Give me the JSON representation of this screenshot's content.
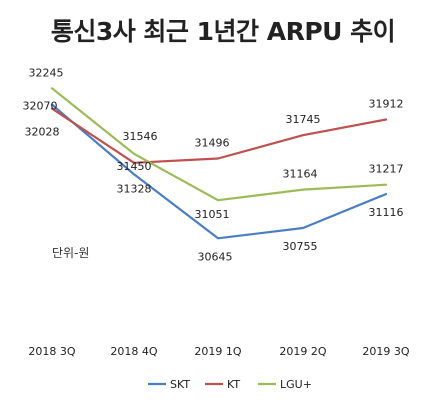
{
  "chart_data": {
    "type": "line",
    "title": "통신3사 최근 1년간 ARPU 추이",
    "unit_note": "단위-원",
    "categories": [
      "2018 3Q",
      "2018 4Q",
      "2019 1Q",
      "2019 2Q",
      "2019 3Q"
    ],
    "series": [
      {
        "name": "SKT",
        "color": "#4A7EC2",
        "values": [
          32070,
          31328,
          30645,
          30755,
          31116
        ]
      },
      {
        "name": "KT",
        "color": "#C0504D",
        "values": [
          32028,
          31450,
          31496,
          31745,
          31912
        ]
      },
      {
        "name": "LGU+",
        "color": "#9BBB59",
        "values": [
          32245,
          31546,
          31051,
          31164,
          31217
        ]
      }
    ],
    "ylim": [
      30200,
      32600
    ],
    "legend_position": "bottom",
    "grid": false
  }
}
